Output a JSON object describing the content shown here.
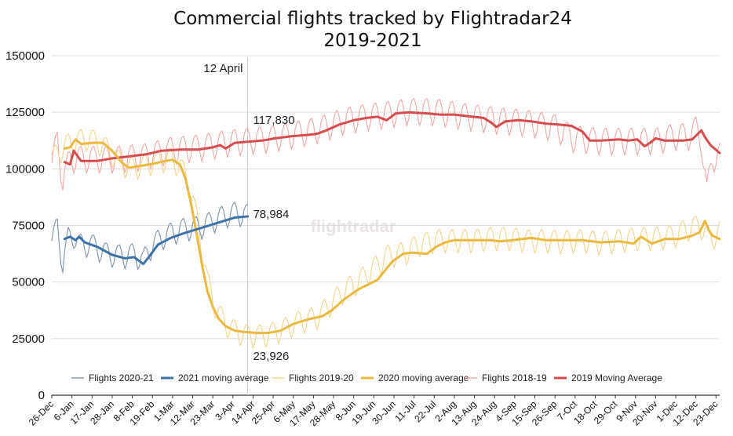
{
  "chart_data": {
    "type": "line",
    "title_lines": [
      "Commercial flights tracked by Flightradar24",
      "2019-2021"
    ],
    "ylim": [
      0,
      150000
    ],
    "yticks": [
      0,
      25000,
      50000,
      75000,
      100000,
      125000,
      150000
    ],
    "x_domain_days": [
      0,
      365
    ],
    "x_tick_labels": [
      "26-Dec",
      "6-Jan",
      "17-Jan",
      "28-Jan",
      "8-Feb",
      "19-Feb",
      "1-Mar",
      "12-Mar",
      "23-Mar",
      "3-Apr",
      "14-Apr",
      "25-Apr",
      "6-May",
      "17-May",
      "28-May",
      "8-Jun",
      "19-Jun",
      "30-Jun",
      "11-Jul",
      "22-Jul",
      "2-Aug",
      "13-Aug",
      "24-Aug",
      "4-Sep",
      "15-Sep",
      "26-Sep",
      "7-Oct",
      "18-Oct",
      "29-Oct",
      "9-Nov",
      "20-Nov",
      "1-Dec",
      "12-Dec",
      "23-Dec"
    ],
    "x_tick_step_days": 11,
    "vline": {
      "day": 107,
      "label": "12 April"
    },
    "annotations": [
      {
        "text": "117,830",
        "day": 107,
        "value": 117830
      },
      {
        "text": "78,984",
        "day": 107,
        "value": 78984
      },
      {
        "text": "23,926",
        "day": 107,
        "value": 23926
      }
    ],
    "watermark": "flightradar",
    "series": [
      {
        "key": "f2021",
        "name": "Flights 2020-21",
        "color": "#7d93ab",
        "style": "thin",
        "anchors": [
          [
            0,
            66000
          ],
          [
            3,
            75000
          ],
          [
            6,
            57000
          ],
          [
            9,
            69000
          ],
          [
            12,
            70000
          ],
          [
            15,
            66000
          ],
          [
            22,
            66000
          ],
          [
            30,
            62000
          ],
          [
            40,
            61000
          ],
          [
            45,
            62000
          ],
          [
            50,
            59000
          ],
          [
            55,
            66000
          ],
          [
            62,
            70000
          ],
          [
            72,
            73000
          ],
          [
            82,
            74000
          ],
          [
            92,
            78000
          ],
          [
            100,
            80000
          ],
          [
            107,
            79000
          ]
        ],
        "amp": 5200,
        "period": 7
      },
      {
        "key": "ma2021",
        "name": "2021 moving average",
        "color": "#3d73a8",
        "style": "thick",
        "anchors": [
          [
            7,
            69000
          ],
          [
            10,
            70000
          ],
          [
            13,
            68500
          ],
          [
            15,
            70000
          ],
          [
            18,
            67500
          ],
          [
            25,
            65500
          ],
          [
            33,
            62000
          ],
          [
            40,
            60500
          ],
          [
            45,
            61000
          ],
          [
            50,
            58000
          ],
          [
            53,
            61000
          ],
          [
            58,
            66500
          ],
          [
            65,
            69500
          ],
          [
            72,
            71500
          ],
          [
            82,
            74000
          ],
          [
            92,
            76500
          ],
          [
            100,
            78500
          ],
          [
            107,
            79000
          ]
        ]
      },
      {
        "key": "f2020",
        "name": "Flights 2019-20",
        "color": "#f3d58c",
        "style": "thin",
        "anchors": [
          [
            0,
            104000
          ],
          [
            8,
            110000
          ],
          [
            14,
            112000
          ],
          [
            20,
            113000
          ],
          [
            28,
            110000
          ],
          [
            35,
            104000
          ],
          [
            42,
            100000
          ],
          [
            50,
            101000
          ],
          [
            58,
            103000
          ],
          [
            65,
            104000
          ],
          [
            70,
            101000
          ],
          [
            75,
            93000
          ],
          [
            80,
            75000
          ],
          [
            85,
            50000
          ],
          [
            90,
            37000
          ],
          [
            95,
            31000
          ],
          [
            100,
            28000
          ],
          [
            107,
            26000
          ],
          [
            115,
            26000
          ],
          [
            125,
            28000
          ],
          [
            135,
            32000
          ],
          [
            145,
            34000
          ],
          [
            150,
            38000
          ],
          [
            160,
            46000
          ],
          [
            168,
            50000
          ],
          [
            172,
            53000
          ],
          [
            178,
            57000
          ],
          [
            183,
            61000
          ],
          [
            190,
            62000
          ],
          [
            195,
            63000
          ],
          [
            200,
            66000
          ],
          [
            210,
            68000
          ],
          [
            220,
            68000
          ],
          [
            230,
            68000
          ],
          [
            240,
            69000
          ],
          [
            250,
            69000
          ],
          [
            260,
            68000
          ],
          [
            270,
            68000
          ],
          [
            280,
            67500
          ],
          [
            290,
            68000
          ],
          [
            300,
            67000
          ],
          [
            310,
            68000
          ],
          [
            320,
            69000
          ],
          [
            330,
            69000
          ],
          [
            340,
            70000
          ],
          [
            350,
            74000
          ],
          [
            355,
            74000
          ],
          [
            360,
            68000
          ],
          [
            365,
            72000
          ]
        ],
        "amp": 5200,
        "period": 7
      },
      {
        "key": "ma2020",
        "name": "2020 moving average",
        "color": "#eab93e",
        "style": "thick",
        "anchors": [
          [
            7,
            109000
          ],
          [
            10,
            109500
          ],
          [
            13,
            113000
          ],
          [
            16,
            111000
          ],
          [
            22,
            111500
          ],
          [
            28,
            111500
          ],
          [
            33,
            108000
          ],
          [
            38,
            103000
          ],
          [
            42,
            100500
          ],
          [
            50,
            101500
          ],
          [
            57,
            102500
          ],
          [
            62,
            103500
          ],
          [
            66,
            104000
          ],
          [
            70,
            102000
          ],
          [
            73,
            96000
          ],
          [
            76,
            85000
          ],
          [
            79,
            72000
          ],
          [
            82,
            58000
          ],
          [
            85,
            46000
          ],
          [
            88,
            39000
          ],
          [
            91,
            34000
          ],
          [
            95,
            30500
          ],
          [
            100,
            28500
          ],
          [
            105,
            28000
          ],
          [
            112,
            27500
          ],
          [
            118,
            27500
          ],
          [
            125,
            28500
          ],
          [
            132,
            31500
          ],
          [
            140,
            33500
          ],
          [
            148,
            35000
          ],
          [
            153,
            37500
          ],
          [
            160,
            42500
          ],
          [
            168,
            47000
          ],
          [
            173,
            49000
          ],
          [
            178,
            51000
          ],
          [
            181,
            54000
          ],
          [
            186,
            59000
          ],
          [
            192,
            62500
          ],
          [
            197,
            63000
          ],
          [
            205,
            62500
          ],
          [
            210,
            65500
          ],
          [
            215,
            67500
          ],
          [
            220,
            68500
          ],
          [
            230,
            68500
          ],
          [
            240,
            68500
          ],
          [
            245,
            68000
          ],
          [
            252,
            68500
          ],
          [
            262,
            69500
          ],
          [
            270,
            68500
          ],
          [
            280,
            68500
          ],
          [
            290,
            68500
          ],
          [
            300,
            67500
          ],
          [
            310,
            68000
          ],
          [
            318,
            67000
          ],
          [
            322,
            70000
          ],
          [
            328,
            67000
          ],
          [
            335,
            69000
          ],
          [
            343,
            69000
          ],
          [
            350,
            70500
          ],
          [
            354,
            72000
          ],
          [
            357,
            77000
          ],
          [
            359,
            73000
          ],
          [
            361,
            70500
          ],
          [
            365,
            69000
          ]
        ]
      },
      {
        "key": "f2019",
        "name": "Flights 2018-19",
        "color": "#f2a7a8",
        "style": "thin",
        "anchors": [
          [
            0,
            100000
          ],
          [
            3,
            113000
          ],
          [
            6,
            94000
          ],
          [
            10,
            104000
          ],
          [
            20,
            104000
          ],
          [
            35,
            104000
          ],
          [
            50,
            105000
          ],
          [
            65,
            108000
          ],
          [
            80,
            109000
          ],
          [
            95,
            111000
          ],
          [
            107,
            112000
          ],
          [
            120,
            113000
          ],
          [
            140,
            116000
          ],
          [
            150,
            118000
          ],
          [
            160,
            121000
          ],
          [
            175,
            123000
          ],
          [
            185,
            124000
          ],
          [
            195,
            125000
          ],
          [
            210,
            125000
          ],
          [
            225,
            123000
          ],
          [
            235,
            122000
          ],
          [
            245,
            121000
          ],
          [
            260,
            120000
          ],
          [
            275,
            118000
          ],
          [
            285,
            113000
          ],
          [
            300,
            112000
          ],
          [
            320,
            112000
          ],
          [
            330,
            112000
          ],
          [
            340,
            114000
          ],
          [
            348,
            114000
          ],
          [
            352,
            117000
          ],
          [
            355,
            112000
          ],
          [
            358,
            89000
          ],
          [
            361,
            104000
          ],
          [
            365,
            106000
          ]
        ],
        "amp": 6000,
        "period": 7
      },
      {
        "key": "ma2019",
        "name": "2019 Moving Average",
        "color": "#d94a4f",
        "style": "thick",
        "anchors": [
          [
            7,
            103000
          ],
          [
            10,
            102000
          ],
          [
            12,
            108000
          ],
          [
            16,
            103500
          ],
          [
            25,
            103500
          ],
          [
            32,
            104500
          ],
          [
            42,
            105500
          ],
          [
            52,
            106500
          ],
          [
            60,
            108000
          ],
          [
            70,
            108500
          ],
          [
            80,
            108500
          ],
          [
            88,
            109500
          ],
          [
            92,
            110500
          ],
          [
            95,
            109000
          ],
          [
            100,
            111500
          ],
          [
            107,
            112000
          ],
          [
            115,
            112500
          ],
          [
            122,
            113500
          ],
          [
            132,
            114500
          ],
          [
            140,
            115000
          ],
          [
            145,
            115500
          ],
          [
            150,
            117000
          ],
          [
            157,
            119500
          ],
          [
            165,
            121500
          ],
          [
            172,
            122500
          ],
          [
            178,
            123000
          ],
          [
            183,
            121500
          ],
          [
            188,
            124500
          ],
          [
            195,
            125000
          ],
          [
            205,
            124500
          ],
          [
            212,
            124000
          ],
          [
            220,
            124000
          ],
          [
            230,
            123000
          ],
          [
            236,
            122500
          ],
          [
            240,
            120500
          ],
          [
            243,
            118500
          ],
          [
            248,
            121000
          ],
          [
            255,
            121500
          ],
          [
            262,
            121000
          ],
          [
            270,
            120000
          ],
          [
            278,
            119500
          ],
          [
            284,
            119000
          ],
          [
            290,
            116500
          ],
          [
            294,
            112500
          ],
          [
            300,
            112500
          ],
          [
            310,
            113000
          ],
          [
            315,
            112500
          ],
          [
            320,
            113000
          ],
          [
            324,
            110000
          ],
          [
            327,
            111500
          ],
          [
            330,
            113500
          ],
          [
            335,
            112500
          ],
          [
            345,
            112500
          ],
          [
            350,
            113000
          ],
          [
            355,
            117000
          ],
          [
            357,
            114000
          ],
          [
            360,
            110500
          ],
          [
            365,
            107000
          ]
        ]
      }
    ]
  }
}
